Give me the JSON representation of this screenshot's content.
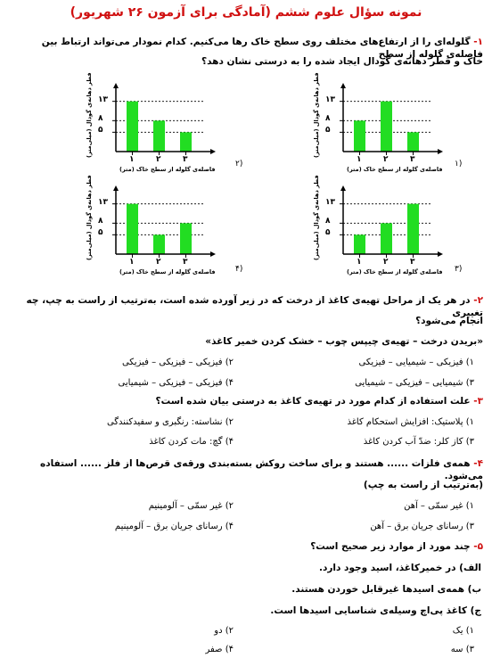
{
  "title": "نمونه سؤال علوم ششم (آمادگی برای آزمون ۲۶ شهریور)",
  "q1": {
    "number": "۱-",
    "text_line1": "گلوله‌ای را از ارتفاع‌های مختلف روی سطح خاک رها می‌کنیم. کدام نمودار می‌تواند ارتباط بین فاصله‌ی گلوله از سطح",
    "text_line2": "خاک و قطر دهانه‌ی گودال ایجاد شده را به درستی نشان دهد؟",
    "y_axis_label": "قطر دهانه‌ی گودال (میلی‌متر)",
    "x_axis_label": "فاصله‌ی گلوله از سطح خاک (متر)",
    "opt1": "(۱",
    "opt2": "(۲",
    "opt3": "(۳",
    "opt4": "(۴"
  },
  "chart_data": [
    {
      "type": "bar",
      "option": "1",
      "categories": [
        "۱",
        "۲",
        "۳"
      ],
      "values": [
        8,
        13,
        5
      ],
      "yticks": [
        "۵",
        "۸",
        "۱۳"
      ],
      "ylim": [
        0,
        15
      ],
      "color": "#22dd22"
    },
    {
      "type": "bar",
      "option": "2",
      "categories": [
        "۱",
        "۲",
        "۳"
      ],
      "values": [
        13,
        8,
        5
      ],
      "yticks": [
        "۵",
        "۸",
        "۱۳"
      ],
      "ylim": [
        0,
        15
      ],
      "color": "#22dd22"
    },
    {
      "type": "bar",
      "option": "3",
      "categories": [
        "۱",
        "۲",
        "۳"
      ],
      "values": [
        5,
        8,
        13
      ],
      "yticks": [
        "۵",
        "۸",
        "۱۳"
      ],
      "ylim": [
        0,
        15
      ],
      "color": "#22dd22"
    },
    {
      "type": "bar",
      "option": "4",
      "categories": [
        "۱",
        "۲",
        "۳"
      ],
      "values": [
        13,
        5,
        8
      ],
      "yticks": [
        "۵",
        "۸",
        "۱۳"
      ],
      "ylim": [
        0,
        15
      ],
      "color": "#22dd22"
    }
  ],
  "q2": {
    "number": "۲-",
    "text_line1": "در هر یک از مراحل تهیه‌ی کاغذ از درخت که در زیر آورده شده است، به‌ترتیب از راست به چپ، چه تغییری",
    "text_line2": "انجام می‌شود؟",
    "steps": "«بریدن درخت – تهیه‌ی چیپس چوب – خشک کردن خمیر کاغذ»",
    "opt1": "۱) فیزیکی – شیمیایی – فیزیکی",
    "opt2": "۲) فیزیکی – فیزیکی – فیزیکی",
    "opt3": "۳) شیمیایی – فیزیکی – شیمیایی",
    "opt4": "۴) فیزیکی – فیزیکی – شیمیایی"
  },
  "q3": {
    "number": "۳-",
    "text": "علت استفاده از کدام مورد در تهیه‌ی کاغذ به درستی بیان شده است؟",
    "opt1": "۱) پلاستیک: افزایش استحکام کاغذ",
    "opt2": "۲) نشاسته: رنگبری و سفیدکنندگی",
    "opt3": "۳) کاز کلر: ضدّ آب کردن کاغذ",
    "opt4": "۴) گچ: مات کردن کاغذ"
  },
  "q4": {
    "number": "۴-",
    "text": "همه‌ی فلزات ...... هستند و برای ساخت روکش بسته‌بندی ورقه‌ی قرص‌ها از فلز ...... استفاده می‌شود.",
    "sub": "(به‌ترتیب از راست به چپ)",
    "opt1": "۱) غیر سمّی – آهن",
    "opt2": "۲) غیر سمّی – آلومینیم",
    "opt3": "۳) رسانای جریان برق – آهن",
    "opt4": "۴) رسانای جریان برق – آلومینیم"
  },
  "q5": {
    "number": "۵-",
    "text": "چند مورد از موارد زیر صحیح است؟",
    "a": "الف) در خمیرکاغذ، اسید وجود دارد.",
    "b": "ب) همه‌ی اسیدها غیرقابل خوردن هستند.",
    "c": "ج) کاغذ پی‌اچ وسیله‌ی شناسایی اسیدها است.",
    "opt1": "۱) یک",
    "opt2": "۲) دو",
    "opt3": "۳) سه",
    "opt4": "۴) صفر"
  }
}
